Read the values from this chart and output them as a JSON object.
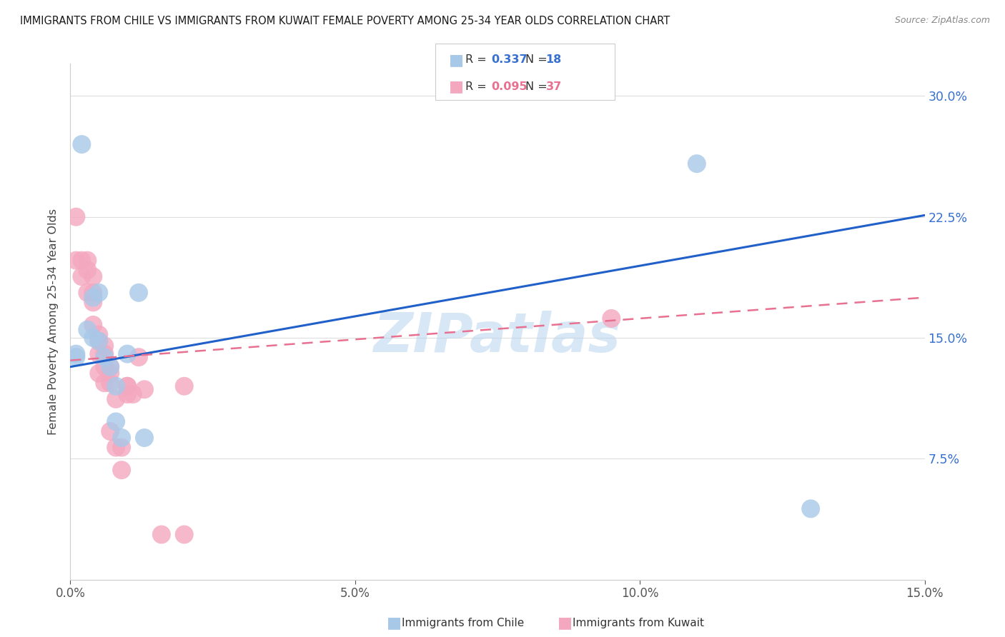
{
  "title": "IMMIGRANTS FROM CHILE VS IMMIGRANTS FROM KUWAIT FEMALE POVERTY AMONG 25-34 YEAR OLDS CORRELATION CHART",
  "source": "Source: ZipAtlas.com",
  "ylabel_label": "Female Poverty Among 25-34 Year Olds",
  "chile_R": "0.337",
  "chile_N": "18",
  "kuwait_R": "0.095",
  "kuwait_N": "37",
  "chile_color": "#a8c8e8",
  "kuwait_color": "#f4a8c0",
  "chile_line_color": "#2060c8",
  "kuwait_line_color": "#e87090",
  "watermark": "ZIPatlas",
  "chile_points_x": [
    0.001,
    0.001,
    0.002,
    0.003,
    0.004,
    0.004,
    0.005,
    0.005,
    0.006,
    0.007,
    0.008,
    0.008,
    0.009,
    0.01,
    0.012,
    0.013,
    0.11,
    0.13
  ],
  "chile_points_y": [
    0.14,
    0.138,
    0.27,
    0.155,
    0.175,
    0.15,
    0.178,
    0.148,
    0.138,
    0.132,
    0.12,
    0.098,
    0.088,
    0.14,
    0.178,
    0.088,
    0.258,
    0.044
  ],
  "kuwait_points_x": [
    0.001,
    0.001,
    0.002,
    0.002,
    0.003,
    0.003,
    0.003,
    0.004,
    0.004,
    0.004,
    0.004,
    0.005,
    0.005,
    0.005,
    0.005,
    0.006,
    0.006,
    0.006,
    0.006,
    0.007,
    0.007,
    0.007,
    0.007,
    0.008,
    0.008,
    0.009,
    0.009,
    0.01,
    0.01,
    0.011,
    0.012,
    0.013,
    0.016,
    0.02,
    0.02,
    0.095,
    0.01
  ],
  "kuwait_points_y": [
    0.225,
    0.198,
    0.198,
    0.188,
    0.198,
    0.192,
    0.178,
    0.188,
    0.178,
    0.172,
    0.158,
    0.152,
    0.148,
    0.14,
    0.128,
    0.145,
    0.14,
    0.132,
    0.122,
    0.132,
    0.128,
    0.122,
    0.092,
    0.112,
    0.082,
    0.082,
    0.068,
    0.12,
    0.12,
    0.115,
    0.138,
    0.118,
    0.028,
    0.028,
    0.12,
    0.162,
    0.115
  ],
  "chile_trend_x0": 0.0,
  "chile_trend_y0": 0.132,
  "chile_trend_x1": 0.15,
  "chile_trend_y1": 0.226,
  "kuwait_trend_x0": 0.0,
  "kuwait_trend_y0": 0.136,
  "kuwait_trend_x1": 0.15,
  "kuwait_trend_y1": 0.175,
  "xlim": [
    0.0,
    0.15
  ],
  "ylim": [
    0.0,
    0.32
  ],
  "xticks": [
    0.0,
    0.05,
    0.1,
    0.15
  ],
  "yticks": [
    0.0,
    0.075,
    0.15,
    0.225,
    0.3
  ],
  "background_color": "#ffffff",
  "grid_color": "#dedede"
}
